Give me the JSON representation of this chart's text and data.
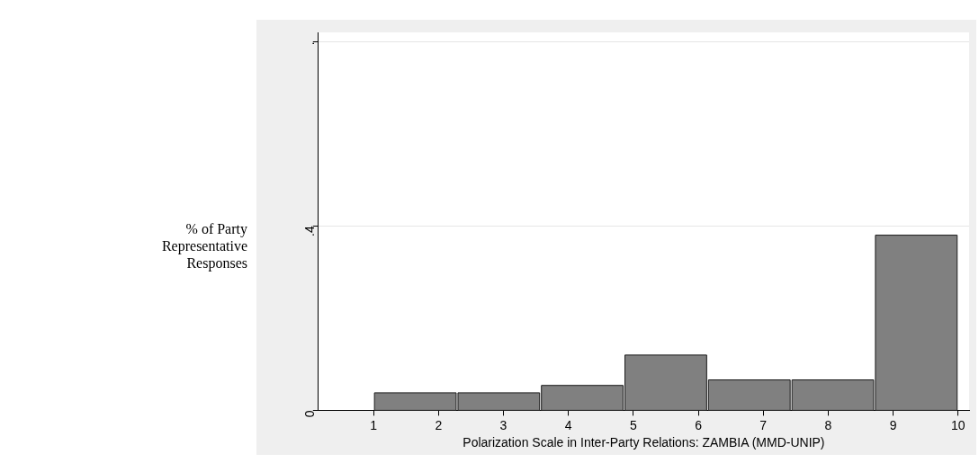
{
  "chart_data": {
    "type": "histogram",
    "xlabel": "Polarization Scale in Inter-Party Relations: ZAMBIA (MMD-UNIP)",
    "ylabel": "% of Party Representative Responses",
    "bins": [
      1,
      2.286,
      3.571,
      4.857,
      6.143,
      7.429,
      8.714,
      10
    ],
    "values": [
      0.038,
      0.038,
      0.054,
      0.12,
      0.066,
      0.066,
      0.38
    ],
    "color": "#808080",
    "xlim": [
      0.15,
      10.17
    ],
    "xticks": [
      1,
      2,
      3,
      4,
      5,
      6,
      7,
      8,
      9,
      10
    ],
    "ylim": [
      0,
      0.82
    ],
    "yticks": [
      0,
      {
        "value": 0.4,
        "label": ".4"
      },
      {
        "value": 0.8,
        "label": "."
      }
    ],
    "grid": "y"
  }
}
